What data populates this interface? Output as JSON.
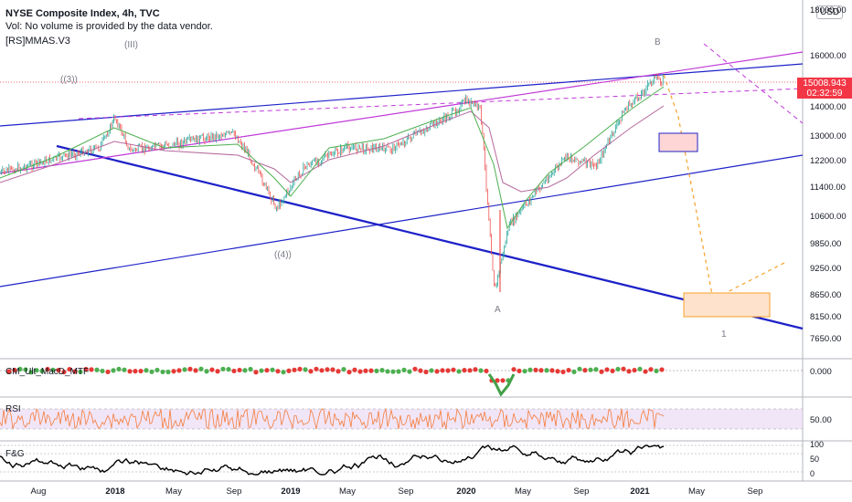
{
  "header": {
    "title": "NYSE Composite Index, 4h, TVC",
    "volume_note": "Vol: No volume is provided by the data vendor.",
    "indicator": "[RS]MMAS.V3",
    "currency": "USD"
  },
  "price_badge": {
    "price": "15008.943",
    "countdown": "02:32:59"
  },
  "colors": {
    "up": "#26a69a",
    "down": "#ef5350",
    "price_badge": "#f23645",
    "blue_line": "#1e22c8",
    "magenta_line": "#c038d8",
    "ma_green": "#4caf50",
    "ma_purple": "#b5699c",
    "projection": "#f7a028",
    "rsi_line": "#f57c38",
    "rsi_band": "#e8d4f4",
    "fg_line": "#000000"
  },
  "panes": [
    {
      "name": "main",
      "label": ""
    },
    {
      "name": "macd",
      "label": "CM_Ult_MacD_MTF"
    },
    {
      "name": "rsi",
      "label": "RSI"
    },
    {
      "name": "fg",
      "label": "F&G"
    }
  ],
  "chart_data": {
    "type": "line",
    "title": "NYSE Composite Index, 4h, TVC",
    "y_axis_labels": [
      "18000.00",
      "16000.00",
      "15000.00",
      "14000.00",
      "13000.00",
      "12200.00",
      "11400.00",
      "10600.00",
      "9850.00",
      "9250.00",
      "8650.00",
      "8150.00",
      "7650.00"
    ],
    "x_axis_labels": [
      "Aug",
      "2018",
      "May",
      "Sep",
      "2019",
      "May",
      "Sep",
      "2020",
      "May",
      "Sep",
      "2021",
      "May",
      "Sep"
    ],
    "macd_axis_labels": [
      "0.000"
    ],
    "rsi_axis_labels": [
      "50.00"
    ],
    "fg_axis_labels": [
      "100",
      "50",
      "0"
    ],
    "price_series_approx": [
      [
        "2017-07",
        11800
      ],
      [
        "2017-10",
        12350
      ],
      [
        "2017-12",
        12600
      ],
      [
        "2018-01",
        13600
      ],
      [
        "2018-02",
        12500
      ],
      [
        "2018-05",
        12700
      ],
      [
        "2018-08",
        13000
      ],
      [
        "2018-09",
        13050
      ],
      [
        "2018-10",
        12400
      ],
      [
        "2018-12",
        10800
      ],
      [
        "2019-02",
        12000
      ],
      [
        "2019-05",
        12600
      ],
      [
        "2019-08",
        12550
      ],
      [
        "2019-12",
        13700
      ],
      [
        "2020-01",
        14200
      ],
      [
        "2020-02",
        13900
      ],
      [
        "2020-03",
        8700
      ],
      [
        "2020-04",
        10300
      ],
      [
        "2020-06",
        11300
      ],
      [
        "2020-08",
        12300
      ],
      [
        "2020-10",
        12000
      ],
      [
        "2020-12",
        13900
      ],
      [
        "2021-01",
        14400
      ],
      [
        "2021-02",
        15100
      ],
      [
        "2021-02",
        15008.943
      ]
    ],
    "wave_labels": [
      "((3))",
      "(III)",
      "((4))",
      "A",
      "B",
      "1"
    ],
    "last_price": "15008.943",
    "countdown": "02:32:59"
  }
}
